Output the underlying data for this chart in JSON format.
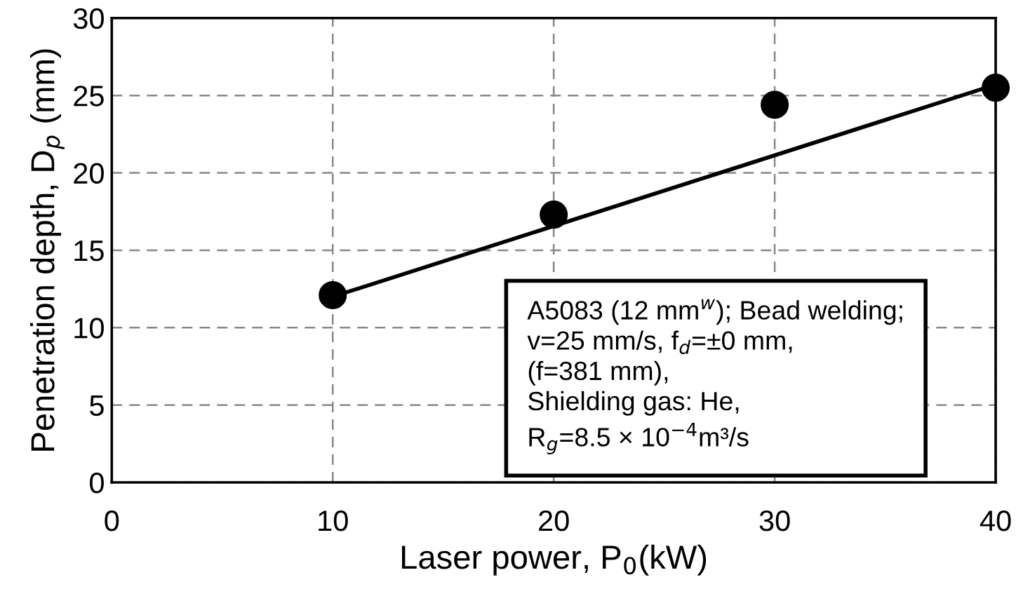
{
  "chart_data": {
    "type": "scatter",
    "xlabel": "Laser power, P$_{0}$(kW)",
    "ylabel": "Penetration depth, D$_{p}$ (mm)",
    "series": [
      {
        "color": "#000000",
        "x": [
          10,
          20,
          30,
          40
        ],
        "values": [
          12.1,
          17.3,
          24.4,
          25.5
        ],
        "marker": "circle"
      },
      {
        "type": "line",
        "color": "#000000",
        "x": [
          10,
          40
        ],
        "values": [
          12.0,
          25.7
        ],
        "marker": "none",
        "line_style": "solid"
      }
    ],
    "xlim": [
      0,
      40
    ],
    "xticks": [
      0,
      10,
      20,
      30,
      40
    ],
    "ylim": [
      0,
      30
    ],
    "yticks": [
      0,
      5,
      10,
      15,
      20,
      25,
      30
    ],
    "grid": true,
    "annotations": [
      "A5083 (12 mm$^{w}$); Bead welding;\nv=25 mm/s, f$_{d}$=±0 mm,\n(f=381 mm),\nShielding gas: He,\nR$_{g}$=8.5 × 10$^{−4}$m³/s"
    ]
  }
}
